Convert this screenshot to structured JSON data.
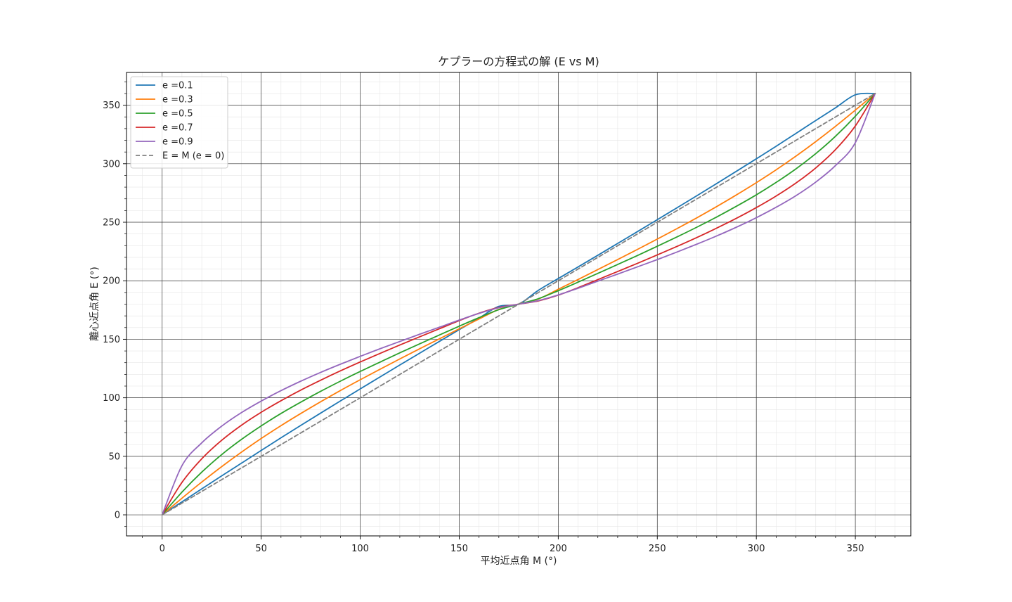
{
  "chart_data": {
    "type": "line",
    "title": "ケプラーの方程式の解 (E vs M)",
    "xlabel": "平均近点角 M (°)",
    "ylabel": "離心近点角 E (°)",
    "xlim": [
      -18,
      378
    ],
    "ylim": [
      -18,
      378
    ],
    "xticks": [
      0,
      50,
      100,
      150,
      200,
      250,
      300,
      350
    ],
    "yticks": [
      0,
      50,
      100,
      150,
      200,
      250,
      300,
      350
    ],
    "xtick_labels": [
      "0",
      "50",
      "100",
      "150",
      "200",
      "250",
      "300",
      "350"
    ],
    "ytick_labels": [
      "0",
      "50",
      "100",
      "150",
      "200",
      "250",
      "300",
      "350"
    ],
    "grid": true,
    "minor_grid": true,
    "legend_position": "top-left",
    "x_range": [
      0,
      360
    ],
    "x": [
      0,
      10,
      20,
      30,
      40,
      50,
      60,
      70,
      80,
      90,
      100,
      110,
      120,
      130,
      140,
      150,
      160,
      170,
      180,
      190,
      200,
      210,
      220,
      230,
      240,
      250,
      260,
      270,
      280,
      290,
      300,
      310,
      320,
      330,
      340,
      350,
      360
    ],
    "series": [
      {
        "name": "e =0.1",
        "color": "#1f77b4",
        "dash": false,
        "values": [
          0,
          11.1,
          22.2,
          33.2,
          44.1,
          55.0,
          65.8,
          76.4,
          86.9,
          97.3,
          107.6,
          117.8,
          128.0,
          138.1,
          148.2,
          158.2,
          168.1,
          178.1,
          180,
          191.9,
          201.9,
          211.8,
          221.8,
          231.9,
          242.0,
          252.2,
          262.4,
          272.7,
          283.1,
          293.6,
          304.2,
          314.9,
          325.9,
          336.9,
          347.8,
          358.9,
          360
        ]
      },
      {
        "name": "e =0.3",
        "color": "#ff7f0e",
        "dash": false,
        "values": [
          0,
          14.2,
          28.0,
          41.1,
          53.5,
          65.2,
          76.2,
          86.6,
          96.6,
          106.2,
          115.4,
          124.4,
          133.2,
          141.9,
          150.4,
          158.9,
          167.3,
          175.5,
          180,
          184.5,
          192.7,
          201.1,
          209.6,
          218.1,
          226.8,
          235.6,
          244.6,
          253.8,
          263.4,
          273.4,
          283.8,
          294.8,
          306.5,
          318.9,
          332.0,
          345.8,
          360
        ]
      },
      {
        "name": "e =0.5",
        "color": "#2ca02c",
        "dash": false,
        "values": [
          0,
          19.4,
          36.5,
          51.4,
          64.4,
          76.0,
          86.6,
          96.3,
          105.5,
          114.2,
          122.5,
          130.5,
          138.4,
          146.1,
          153.7,
          161.2,
          168.5,
          175.3,
          180,
          184.7,
          191.5,
          198.8,
          206.3,
          213.9,
          221.6,
          229.5,
          237.5,
          245.8,
          254.5,
          263.7,
          273.4,
          284.0,
          295.6,
          308.6,
          323.5,
          340.6,
          360
        ]
      },
      {
        "name": "e =0.7",
        "color": "#d62728",
        "dash": false,
        "values": [
          0,
          27.7,
          47.9,
          63.6,
          76.5,
          87.6,
          97.5,
          106.6,
          115.0,
          123.0,
          130.6,
          137.9,
          145.1,
          152.1,
          159.0,
          165.9,
          172.3,
          177.2,
          180,
          182.8,
          187.7,
          194.1,
          201.0,
          207.9,
          214.9,
          222.1,
          229.4,
          237.0,
          245.0,
          253.4,
          262.5,
          272.4,
          283.5,
          296.4,
          312.1,
          332.3,
          360
        ]
      },
      {
        "name": "e =0.9",
        "color": "#9467bd",
        "dash": false,
        "values": [
          0,
          42.0,
          61.5,
          75.7,
          87.3,
          97.2,
          106.1,
          114.2,
          121.7,
          128.7,
          135.4,
          141.9,
          148.1,
          154.3,
          160.3,
          166.4,
          172.1,
          176.9,
          180,
          183.1,
          187.9,
          193.6,
          199.7,
          205.7,
          211.9,
          218.1,
          224.6,
          231.3,
          238.3,
          245.8,
          253.9,
          262.8,
          272.7,
          284.3,
          298.5,
          318.0,
          360
        ]
      },
      {
        "name": "E = M (e = 0)",
        "color": "#808080",
        "dash": true,
        "values": [
          0,
          10,
          20,
          30,
          40,
          50,
          60,
          70,
          80,
          90,
          100,
          110,
          120,
          130,
          140,
          150,
          160,
          170,
          180,
          190,
          200,
          210,
          220,
          230,
          240,
          250,
          260,
          270,
          280,
          290,
          300,
          310,
          320,
          330,
          340,
          350,
          360
        ]
      }
    ]
  }
}
